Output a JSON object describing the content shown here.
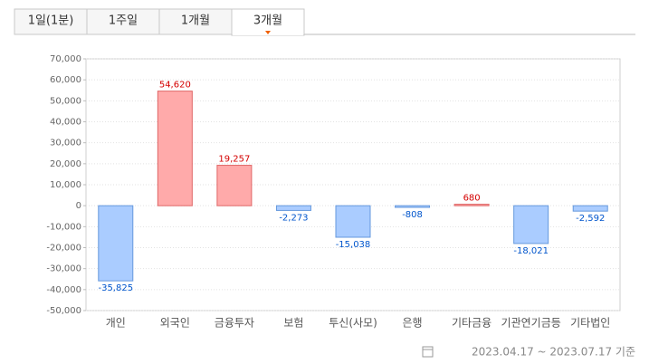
{
  "tabs": {
    "items": [
      "1일(1분)",
      "1주일",
      "1개월",
      "3개월"
    ],
    "active": 3
  },
  "chart_data": {
    "type": "bar",
    "categories": [
      "개인",
      "외국인",
      "금융투자",
      "보험",
      "투신(사모)",
      "은행",
      "기타금융",
      "기관연기금등",
      "기타법인"
    ],
    "values": [
      -35825,
      54620,
      19257,
      -2273,
      -15038,
      -808,
      680,
      -18021,
      -2592
    ],
    "value_labels": [
      "-35,825",
      "54,620",
      "19,257",
      "-2,273",
      "-15,038",
      "-808",
      "680",
      "-18,021",
      "-2,592"
    ],
    "ylim": [
      -50000,
      70000
    ],
    "yticks": [
      {
        "value": -50000,
        "label": "-50,000"
      },
      {
        "value": -40000,
        "label": "-40,000"
      },
      {
        "value": -30000,
        "label": "-30,000"
      },
      {
        "value": -20000,
        "label": "-20,000"
      },
      {
        "value": -10000,
        "label": "-10,000"
      },
      0,
      {
        "value": 10000,
        "label": "10,000"
      },
      {
        "value": 20000,
        "label": "20,000"
      },
      {
        "value": 30000,
        "label": "30,000"
      },
      {
        "value": 40000,
        "label": "40,000"
      },
      {
        "value": 50000,
        "label": "50,000"
      },
      {
        "value": 60000,
        "label": "60,000"
      },
      {
        "value": 70000,
        "label": "70,000"
      }
    ],
    "grid": true,
    "positive_color": "#ffaaaa",
    "positive_border": "#e06666",
    "positive_label_color": "#d40000",
    "negative_color": "#aaccff",
    "negative_border": "#6699dd",
    "negative_label_color": "#0055cc"
  },
  "footer": "2023.04.17 ~ 2023.07.17 기준"
}
